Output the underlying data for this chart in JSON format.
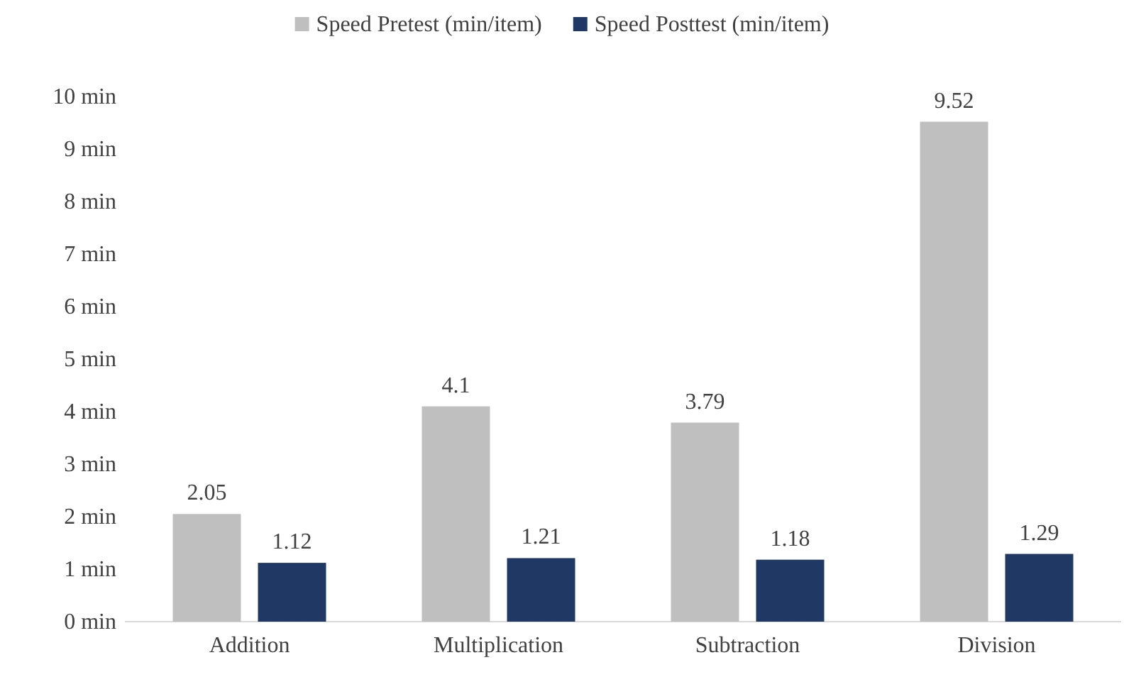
{
  "chart_data": {
    "type": "bar",
    "categories": [
      "Addition",
      "Multiplication",
      "Subtraction",
      "Division"
    ],
    "series": [
      {
        "name": "Speed Pretest (min/item)",
        "color": "#bfbfbf",
        "values": [
          2.05,
          4.1,
          3.79,
          9.52
        ]
      },
      {
        "name": "Speed Posttest (min/item)",
        "color": "#1f3864",
        "values": [
          1.12,
          1.21,
          1.18,
          1.29
        ]
      }
    ],
    "ylim": [
      0,
      10
    ],
    "yticks": [
      {
        "value": 0,
        "label": "0 min"
      },
      {
        "value": 1,
        "label": "1 min"
      },
      {
        "value": 2,
        "label": "2 min"
      },
      {
        "value": 3,
        "label": "3 min"
      },
      {
        "value": 4,
        "label": "4 min"
      },
      {
        "value": 5,
        "label": "5 min"
      },
      {
        "value": 6,
        "label": "6 min"
      },
      {
        "value": 7,
        "label": "7 min"
      },
      {
        "value": 8,
        "label": "8 min"
      },
      {
        "value": 9,
        "label": "9 min"
      },
      {
        "value": 10,
        "label": "10 min"
      }
    ],
    "data_labels": true,
    "legend": "top",
    "grid": false
  }
}
